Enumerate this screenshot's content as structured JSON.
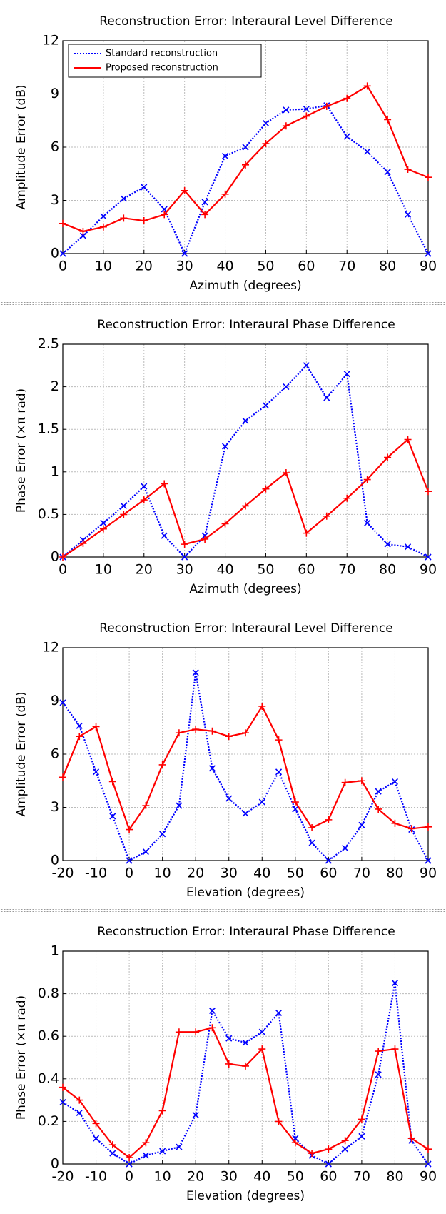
{
  "chart_data": [
    {
      "type": "line",
      "title": "Reconstruction Error: Interaural Level Difference",
      "x_label": "Azimuth (degrees)",
      "y_label": "Amplitude Error (dB)",
      "x": [
        0,
        5,
        10,
        15,
        20,
        25,
        30,
        35,
        40,
        45,
        50,
        55,
        60,
        65,
        70,
        75,
        80,
        85,
        90
      ],
      "xlim": [
        0,
        90
      ],
      "xticks": [
        0,
        10,
        20,
        30,
        40,
        50,
        60,
        70,
        80,
        90
      ],
      "ylim": [
        0,
        12
      ],
      "yticks": [
        0,
        3,
        6,
        9,
        12
      ],
      "grid": true,
      "legend": "upper left",
      "series": [
        {
          "name": "Standard reconstruction",
          "color": "#0000ff",
          "linestyle": "dotted",
          "marker": "x",
          "values": [
            0,
            1.0,
            2.1,
            3.1,
            3.75,
            2.5,
            0,
            2.9,
            5.5,
            6.0,
            7.35,
            8.1,
            8.15,
            8.35,
            6.6,
            5.75,
            4.6,
            2.2,
            0
          ]
        },
        {
          "name": "Proposed reconstruction",
          "color": "#ff0000",
          "linestyle": "solid",
          "marker": "+",
          "values": [
            1.7,
            1.25,
            1.5,
            2.0,
            1.85,
            2.2,
            3.55,
            2.2,
            3.35,
            5.0,
            6.2,
            7.2,
            7.75,
            8.3,
            8.75,
            9.45,
            7.55,
            4.75,
            4.3
          ]
        }
      ]
    },
    {
      "type": "line",
      "title": "Reconstruction Error: Interaural Phase Difference",
      "x_label": "Azimuth (degrees)",
      "y_label": "Phase Error (×π rad)",
      "x": [
        0,
        5,
        10,
        15,
        20,
        25,
        30,
        35,
        40,
        45,
        50,
        55,
        60,
        65,
        70,
        75,
        80,
        85,
        90
      ],
      "xlim": [
        0,
        90
      ],
      "xticks": [
        0,
        10,
        20,
        30,
        40,
        50,
        60,
        70,
        80,
        90
      ],
      "ylim": [
        0,
        2.5
      ],
      "yticks": [
        0,
        0.5,
        1,
        1.5,
        2,
        2.5
      ],
      "grid": true,
      "series": [
        {
          "color": "#0000ff",
          "linestyle": "dotted",
          "marker": "x",
          "values": [
            0,
            0.2,
            0.4,
            0.6,
            0.83,
            0.25,
            0,
            0.25,
            1.3,
            1.6,
            1.78,
            2.0,
            2.25,
            1.87,
            2.15,
            0.4,
            0.15,
            0.12,
            0
          ]
        },
        {
          "color": "#ff0000",
          "linestyle": "solid",
          "marker": "+",
          "values": [
            0,
            0.16,
            0.33,
            0.5,
            0.67,
            0.86,
            0.15,
            0.21,
            0.39,
            0.6,
            0.8,
            0.99,
            0.28,
            0.48,
            0.69,
            0.91,
            1.17,
            1.38,
            0.77
          ]
        }
      ]
    },
    {
      "type": "line",
      "title": "Reconstruction Error: Interaural Level Difference",
      "x_label": "Elevation (degrees)",
      "y_label": "Amplitude Error (dB)",
      "x": [
        -20,
        -15,
        -10,
        -5,
        0,
        5,
        10,
        15,
        20,
        25,
        30,
        35,
        40,
        45,
        50,
        55,
        60,
        65,
        70,
        75,
        80,
        85,
        90
      ],
      "xlim": [
        -20,
        90
      ],
      "xticks": [
        -20,
        -10,
        0,
        10,
        20,
        30,
        40,
        50,
        60,
        70,
        80,
        90
      ],
      "ylim": [
        0,
        12
      ],
      "yticks": [
        0,
        3,
        6,
        9,
        12
      ],
      "grid": true,
      "series": [
        {
          "color": "#0000ff",
          "linestyle": "dotted",
          "marker": "x",
          "values": [
            8.9,
            7.6,
            5.0,
            2.5,
            0,
            0.5,
            1.5,
            3.1,
            10.6,
            5.2,
            3.5,
            2.65,
            3.3,
            5.0,
            2.9,
            1.0,
            0,
            0.7,
            2.0,
            3.9,
            4.45,
            1.75,
            0
          ]
        },
        {
          "color": "#ff0000",
          "linestyle": "solid",
          "marker": "+",
          "values": [
            4.7,
            7.0,
            7.55,
            4.45,
            1.75,
            3.1,
            5.4,
            7.2,
            7.4,
            7.3,
            7.0,
            7.2,
            8.7,
            6.8,
            3.3,
            1.85,
            2.3,
            4.4,
            4.5,
            2.9,
            2.1,
            1.8,
            1.9
          ]
        }
      ]
    },
    {
      "type": "line",
      "title": "Reconstruction Error: Interaural Phase Difference",
      "x_label": "Elevation (degrees)",
      "y_label": "Phase Error (×π rad)",
      "x": [
        -20,
        -15,
        -10,
        -5,
        0,
        5,
        10,
        15,
        20,
        25,
        30,
        35,
        40,
        45,
        50,
        55,
        60,
        65,
        70,
        75,
        80,
        85,
        90
      ],
      "xlim": [
        -20,
        90
      ],
      "xticks": [
        -20,
        -10,
        0,
        10,
        20,
        30,
        40,
        50,
        60,
        70,
        80,
        90
      ],
      "ylim": [
        0,
        1
      ],
      "yticks": [
        0,
        0.2,
        0.4,
        0.6,
        0.8,
        1
      ],
      "grid": true,
      "series": [
        {
          "color": "#0000ff",
          "linestyle": "dotted",
          "marker": "x",
          "values": [
            0.29,
            0.24,
            0.12,
            0.05,
            0,
            0.04,
            0.06,
            0.08,
            0.23,
            0.72,
            0.59,
            0.57,
            0.62,
            0.71,
            0.12,
            0.04,
            0,
            0.07,
            0.13,
            0.42,
            0.85,
            0.11,
            0
          ]
        },
        {
          "color": "#ff0000",
          "linestyle": "solid",
          "marker": "+",
          "values": [
            0.36,
            0.3,
            0.19,
            0.09,
            0.03,
            0.1,
            0.25,
            0.62,
            0.62,
            0.64,
            0.47,
            0.46,
            0.54,
            0.2,
            0.1,
            0.05,
            0.07,
            0.11,
            0.21,
            0.53,
            0.54,
            0.12,
            0.07
          ]
        }
      ]
    }
  ]
}
